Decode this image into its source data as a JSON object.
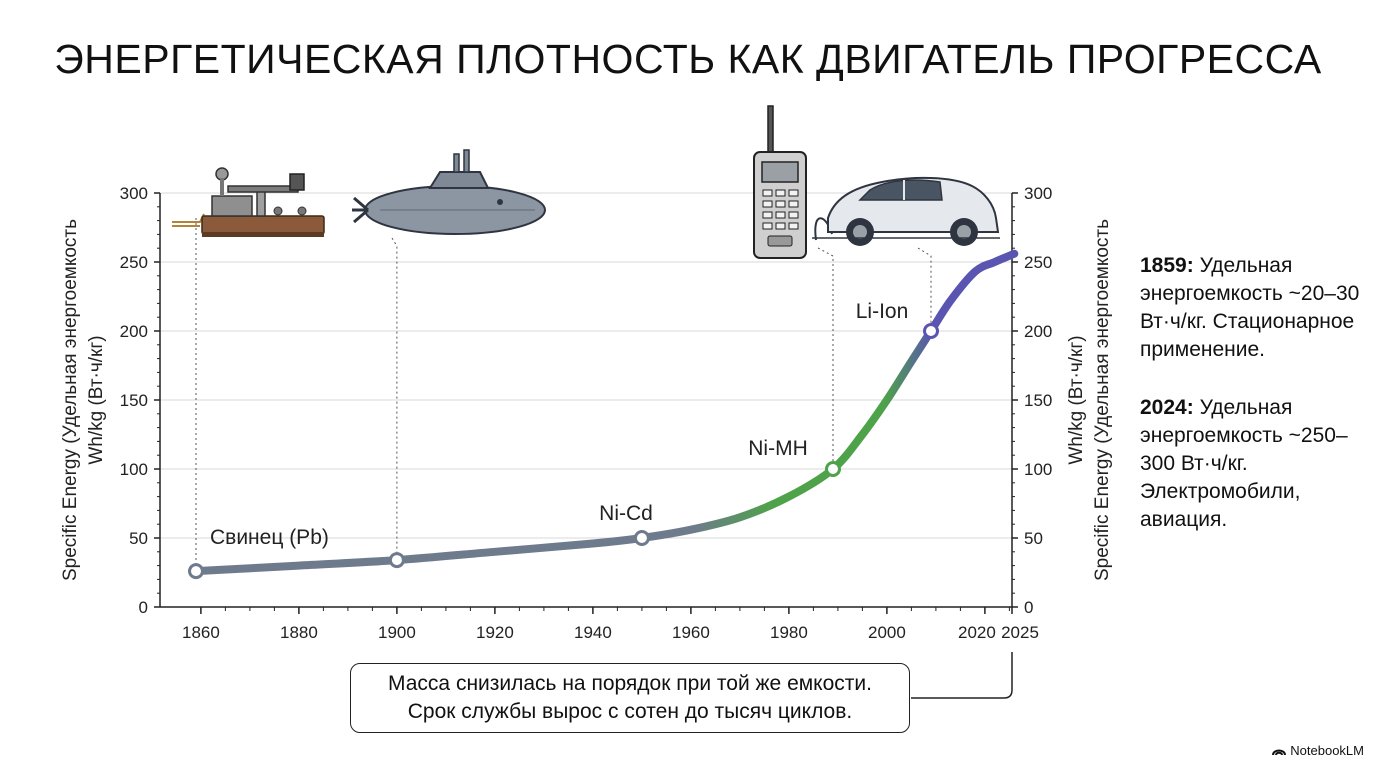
{
  "title": "ЭНЕРГЕТИЧЕСКАЯ ПЛОТНОСТЬ КАК ДВИГАТЕЛЬ ПРОГРЕССА",
  "chart_data": {
    "type": "line",
    "x_ticks": [
      "1860",
      "1880",
      "1900",
      "1920",
      "1940",
      "1960",
      "1980",
      "2000",
      "2020",
      "2025"
    ],
    "y_ticks": [
      "0",
      "50",
      "100",
      "150",
      "200",
      "250",
      "300"
    ],
    "xlim": [
      1855,
      2025
    ],
    "ylim": [
      0,
      300
    ],
    "grid": true,
    "ylabel_left": "Specific Energy (Удельная энергоемкость",
    "ylabel_left_2": "Wh/kg (Вт·ч/кг)",
    "ylabel_right": "Wh/kg (Вт·ч/кг)",
    "ylabel_right_2": "Specific Energy (Удельная энергоемкость",
    "curve": {
      "x": [
        1859,
        1880,
        1900,
        1920,
        1940,
        1950,
        1960,
        1970,
        1980,
        1989,
        1995,
        2000,
        2005,
        2009,
        2013,
        2018,
        2022,
        2026
      ],
      "y": [
        26,
        30,
        34,
        40,
        46,
        50,
        56,
        65,
        80,
        100,
        125,
        150,
        178,
        200,
        222,
        243,
        250,
        256
      ]
    },
    "colors": {
      "gray": "#6e7b8c",
      "green": "#4ea24a",
      "purple": "#5a55b0",
      "grid": "#d8d8d8"
    },
    "milestones": [
      {
        "x": 1859,
        "y": 26,
        "label": "Свинец (Pb)"
      },
      {
        "x": 1900,
        "y": 34,
        "label": ""
      },
      {
        "x": 1950,
        "y": 50,
        "label": "Ni-Cd"
      },
      {
        "x": 1989,
        "y": 100,
        "label": "Ni-MH"
      },
      {
        "x": 2009,
        "y": 200,
        "label": "Li-Ion"
      }
    ],
    "icons": [
      "telegraph-icon",
      "submarine-icon",
      "mobile-phone-icon",
      "electric-car-icon"
    ]
  },
  "notes": [
    {
      "year": "1859:",
      "text": "Удельная энергоемкость ~20–30 Вт·ч/кг. Стационарное применение."
    },
    {
      "year": "2024:",
      "text": "Удельная энергоемкость ~250–300 Вт·ч/кг. Электромобили, авиация."
    }
  ],
  "callout": {
    "line1": "Масса снизилась на порядок при той же емкости.",
    "line2": "Срок службы вырос с сотен до тысяч циклов."
  },
  "brand": "NotebookLM"
}
